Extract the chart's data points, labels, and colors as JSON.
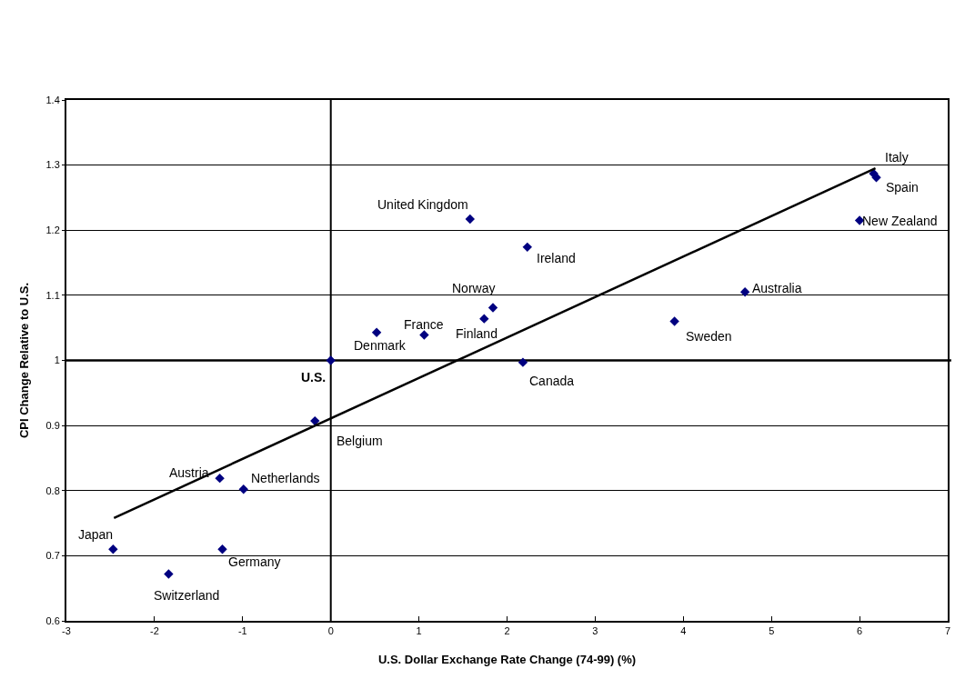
{
  "chart_data": {
    "type": "scatter",
    "xlabel": "U.S. Dollar Exchange Rate Change (74-99) (%)",
    "ylabel": "CPI Change Relative to U.S.",
    "series": [
      {
        "color": "#000080",
        "marker": "diamond",
        "x": [
          1.58,
          2.23,
          1.84,
          1.74,
          1.06,
          0.52,
          0,
          2.18,
          3.9,
          4.7,
          6.16,
          6.19,
          6.0,
          -0.18,
          -1.26,
          -0.99,
          -2.47,
          -1.23,
          -1.84
        ],
        "values": [
          1.217,
          1.174,
          1.081,
          1.064,
          1.039,
          1.043,
          1.0,
          0.997,
          1.06,
          1.105,
          1.287,
          1.281,
          1.215,
          0.907,
          0.819,
          0.802,
          0.71,
          0.71,
          0.672
        ]
      },
      {
        "type": "line",
        "color": "#000000",
        "line_style": "solid",
        "marker": "none",
        "x": [
          -2.46,
          6.18
        ],
        "values": [
          0.758,
          1.295
        ]
      }
    ],
    "xlim": [
      -3,
      7
    ],
    "xticks": [
      -3,
      -2,
      -1,
      0,
      1,
      2,
      3,
      4,
      5,
      6,
      7
    ],
    "ylim": [
      0.6,
      1.4
    ],
    "yticks": [
      0.6,
      0.7,
      0.8,
      0.9,
      1,
      1.1,
      1.2,
      1.3,
      1.4
    ],
    "grid": "y",
    "ref_lines": [
      {
        "axis": "x",
        "value": 0,
        "color": "#000000"
      },
      {
        "axis": "y",
        "value": 1,
        "color": "#000000"
      }
    ],
    "annotations": [
      {
        "text": "United Kingdom",
        "x": 1.58,
        "y": 1.217
      },
      {
        "text": "Ireland",
        "x": 2.23,
        "y": 1.174
      },
      {
        "text": "Norway",
        "x": 1.84,
        "y": 1.081
      },
      {
        "text": "Finland",
        "x": 1.74,
        "y": 1.064
      },
      {
        "text": "France",
        "x": 1.06,
        "y": 1.039
      },
      {
        "text": "Denmark",
        "x": 0.52,
        "y": 1.043
      },
      {
        "text": "U.S.",
        "x": 0,
        "y": 1.0
      },
      {
        "text": "Canada",
        "x": 2.18,
        "y": 0.997
      },
      {
        "text": "Sweden",
        "x": 3.9,
        "y": 1.06
      },
      {
        "text": "Australia",
        "x": 4.7,
        "y": 1.105
      },
      {
        "text": "Italy",
        "x": 6.16,
        "y": 1.287
      },
      {
        "text": "Spain",
        "x": 6.19,
        "y": 1.281
      },
      {
        "text": "New Zealand",
        "x": 6.0,
        "y": 1.215
      },
      {
        "text": "Belgium",
        "x": -0.18,
        "y": 0.907
      },
      {
        "text": "Austria",
        "x": -1.26,
        "y": 0.819
      },
      {
        "text": "Netherlands",
        "x": -0.99,
        "y": 0.802
      },
      {
        "text": "Japan",
        "x": -2.47,
        "y": 0.71
      },
      {
        "text": "Germany",
        "x": -1.23,
        "y": 0.71
      },
      {
        "text": "Switzerland",
        "x": -1.84,
        "y": 0.672
      }
    ]
  }
}
